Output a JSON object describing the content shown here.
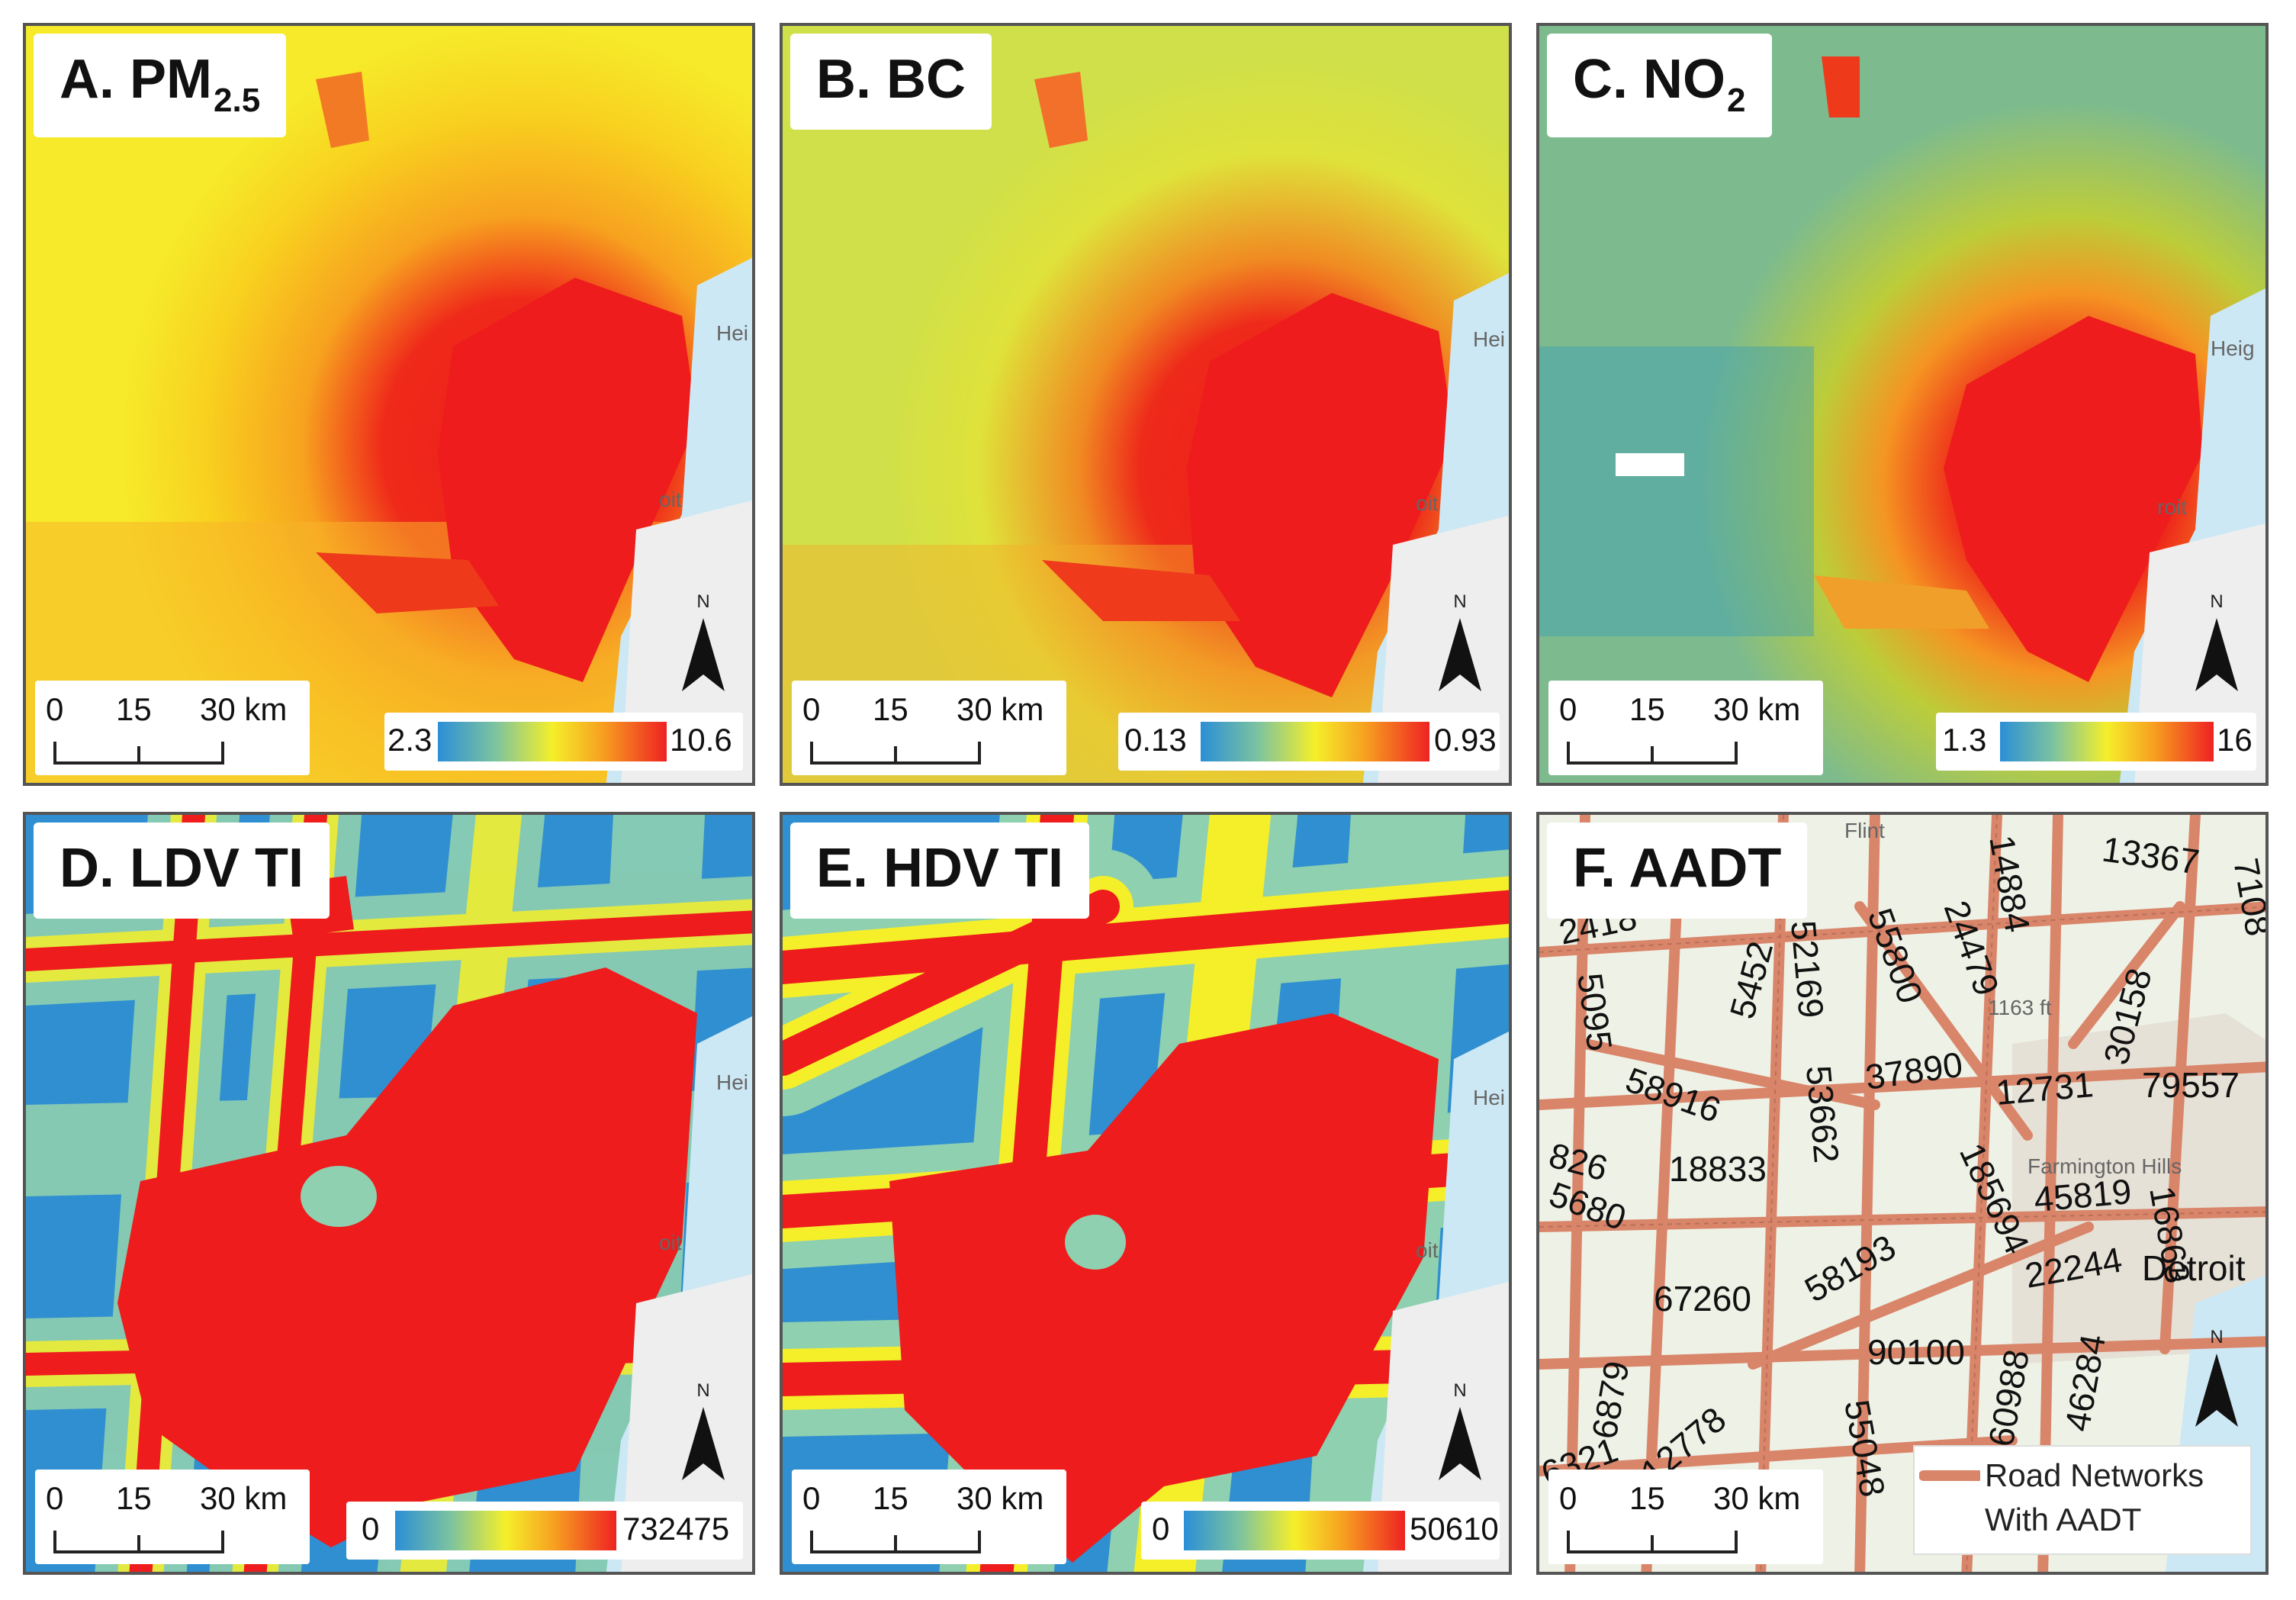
{
  "panels": {
    "a": {
      "title": "A. PM",
      "title_sub": "2.5",
      "legend_min": "2.3",
      "legend_max": "10.6"
    },
    "b": {
      "title": "B. BC",
      "legend_min": "0.13",
      "legend_max": "0.93"
    },
    "c": {
      "title": "C. NO",
      "title_sub": "2",
      "legend_min": "1.3",
      "legend_max": "16"
    },
    "d": {
      "title": "D. LDV TI",
      "legend_min": "0",
      "legend_max": "732475"
    },
    "e": {
      "title": "E. HDV TI",
      "legend_min": "0",
      "legend_max": "50610"
    },
    "f": {
      "title": "F. AADT",
      "legend_line1": "Road Networks",
      "legend_line2": "With AADT"
    }
  },
  "scale_bar": {
    "t0": "0",
    "t1": "15",
    "t2": "30 km"
  },
  "north_label": "N",
  "colors": {
    "low": "#2b8fd6",
    "mid": "#f5ef2a",
    "high": "#ee2222",
    "road": "#d9856a",
    "water": "#cde8f5"
  },
  "aadt_labels": [
    "13367",
    "14884",
    "7108",
    "2418",
    "5452",
    "52169",
    "55800",
    "24479",
    "30158",
    "5095",
    "37890",
    "12731",
    "79557",
    "58916",
    "53662",
    "826",
    "18833",
    "185694",
    "45819",
    "5680",
    "16863",
    "58193",
    "22244",
    "67260",
    "90100",
    "60988",
    "46284",
    "6879",
    "12778",
    "6321",
    "55048"
  ],
  "place_labels": {
    "pa": "Hei",
    "pb": "oit",
    "pc": "Heig",
    "pd": "roit",
    "pe": "Flint",
    "pf": "1163 ft",
    "pg": "Detroit",
    "ph": "Farmington Hills"
  }
}
